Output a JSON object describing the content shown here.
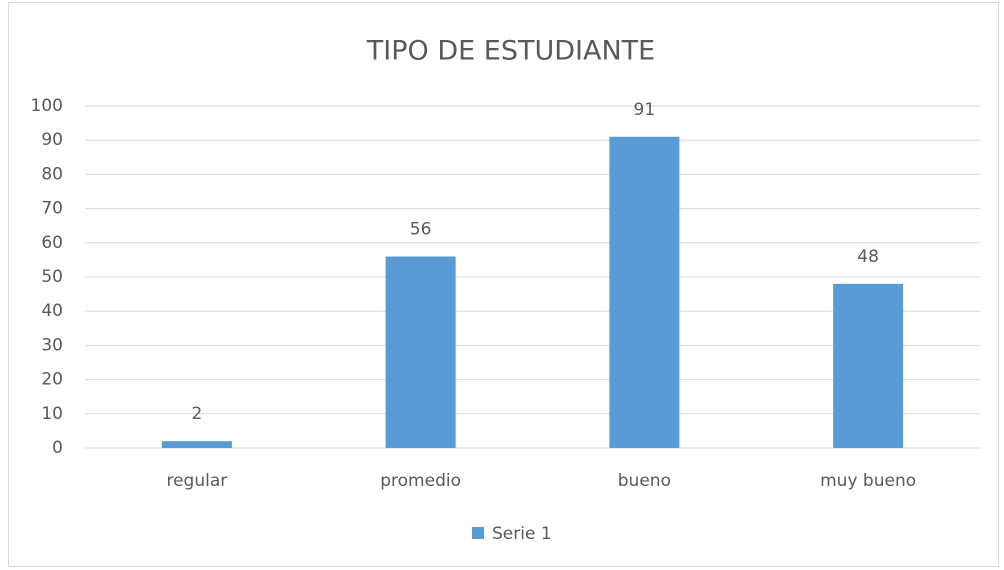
{
  "chart_data": {
    "type": "bar",
    "title": "TIPO DE ESTUDIANTE",
    "categories": [
      "regular",
      "promedio",
      "bueno",
      "muy bueno"
    ],
    "series": [
      {
        "name": "Serie 1",
        "color": "#5b9bd5",
        "values": [
          2,
          56,
          91,
          48
        ]
      }
    ],
    "ylim": [
      0,
      100
    ],
    "yticks": [
      0,
      10,
      20,
      30,
      40,
      50,
      60,
      70,
      80,
      90,
      100
    ],
    "grid": true,
    "data_labels": true,
    "legend": "bottom"
  }
}
